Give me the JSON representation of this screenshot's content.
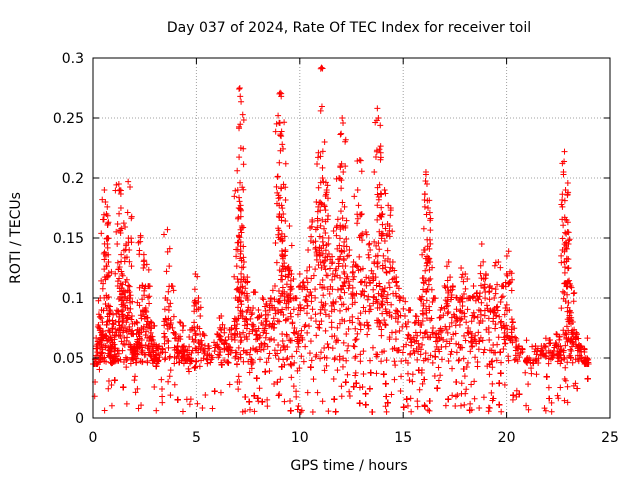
{
  "chart_data": {
    "type": "scatter",
    "title": "Day 037 of 2024, Rate Of TEC Index for receiver toil",
    "xlabel": "GPS time / hours",
    "ylabel": "ROTI / TECUs",
    "xlim": [
      0,
      25
    ],
    "ylim": [
      0,
      0.3
    ],
    "xticks": [
      0,
      5,
      10,
      15,
      20,
      25
    ],
    "yticks": [
      0,
      0.05,
      0.1,
      0.15,
      0.2,
      0.25,
      0.3
    ],
    "xtick_labels": [
      "0",
      "5",
      "10",
      "15",
      "20",
      "25"
    ],
    "ytick_labels": [
      "0",
      "0.05",
      "0.1",
      "0.15",
      "0.2",
      "0.25",
      "0.3"
    ],
    "grid": true,
    "marker": "+",
    "series": [
      {
        "name": "ROTI",
        "color": "#ff0000",
        "time_range": [
          0,
          24
        ],
        "dense_band": [
          0.005,
          0.045
        ],
        "points": [
          [
            0.1,
            0.03
          ],
          [
            0.2,
            0.06
          ],
          [
            0.3,
            0.075
          ],
          [
            0.35,
            0.1
          ],
          [
            0.45,
            0.07
          ],
          [
            0.55,
            0.19
          ],
          [
            0.6,
            0.18
          ],
          [
            0.65,
            0.17
          ],
          [
            0.7,
            0.15
          ],
          [
            0.75,
            0.13
          ],
          [
            0.8,
            0.09
          ],
          [
            0.9,
            0.065
          ],
          [
            1.0,
            0.05
          ],
          [
            1.1,
            0.08
          ],
          [
            1.2,
            0.11
          ],
          [
            1.25,
            0.195
          ],
          [
            1.3,
            0.19
          ],
          [
            1.35,
            0.175
          ],
          [
            1.4,
            0.12
          ],
          [
            1.5,
            0.1
          ],
          [
            1.6,
            0.145
          ],
          [
            1.7,
            0.197
          ],
          [
            1.75,
            0.14
          ],
          [
            1.8,
            0.1
          ],
          [
            1.9,
            0.07
          ],
          [
            2.0,
            0.06
          ],
          [
            2.1,
            0.08
          ],
          [
            2.2,
            0.07
          ],
          [
            2.3,
            0.152
          ],
          [
            2.4,
            0.11
          ],
          [
            2.5,
            0.09
          ],
          [
            2.6,
            0.128
          ],
          [
            2.7,
            0.11
          ],
          [
            2.8,
            0.08
          ],
          [
            2.9,
            0.065
          ],
          [
            3.0,
            0.05
          ],
          [
            3.2,
            0.06
          ],
          [
            3.5,
            0.1
          ],
          [
            3.6,
            0.157
          ],
          [
            3.8,
            0.11
          ],
          [
            4.0,
            0.07
          ],
          [
            4.2,
            0.08
          ],
          [
            4.4,
            0.06
          ],
          [
            4.6,
            0.05
          ],
          [
            4.8,
            0.075
          ],
          [
            4.95,
            0.12
          ],
          [
            5.1,
            0.1
          ],
          [
            5.3,
            0.07
          ],
          [
            5.6,
            0.06
          ],
          [
            6.0,
            0.07
          ],
          [
            6.2,
            0.085
          ],
          [
            6.4,
            0.065
          ],
          [
            6.7,
            0.075
          ],
          [
            6.9,
            0.1
          ],
          [
            7.0,
            0.19
          ],
          [
            7.05,
            0.175
          ],
          [
            7.1,
            0.275
          ],
          [
            7.12,
            0.268
          ],
          [
            7.15,
            0.225
          ],
          [
            7.2,
            0.16
          ],
          [
            7.3,
            0.13
          ],
          [
            7.4,
            0.1
          ],
          [
            7.6,
            0.09
          ],
          [
            7.8,
            0.105
          ],
          [
            8.0,
            0.09
          ],
          [
            8.2,
            0.1
          ],
          [
            8.4,
            0.095
          ],
          [
            8.6,
            0.1
          ],
          [
            8.8,
            0.11
          ],
          [
            8.95,
            0.252
          ],
          [
            9.0,
            0.246
          ],
          [
            9.05,
            0.271
          ],
          [
            9.1,
            0.268
          ],
          [
            9.15,
            0.228
          ],
          [
            9.2,
            0.17
          ],
          [
            9.3,
            0.14
          ],
          [
            9.4,
            0.125
          ],
          [
            9.5,
            0.16
          ],
          [
            9.6,
            0.12
          ],
          [
            9.8,
            0.1
          ],
          [
            10.0,
            0.12
          ],
          [
            10.2,
            0.11
          ],
          [
            10.4,
            0.14
          ],
          [
            10.6,
            0.165
          ],
          [
            10.8,
            0.18
          ],
          [
            10.9,
            0.221
          ],
          [
            11.0,
            0.218
          ],
          [
            11.05,
            0.292
          ],
          [
            11.1,
            0.2
          ],
          [
            11.2,
            0.23
          ],
          [
            11.3,
            0.19
          ],
          [
            11.4,
            0.15
          ],
          [
            11.6,
            0.12
          ],
          [
            11.8,
            0.16
          ],
          [
            11.9,
            0.2
          ],
          [
            12.0,
            0.237
          ],
          [
            12.05,
            0.25
          ],
          [
            12.1,
            0.205
          ],
          [
            12.2,
            0.16
          ],
          [
            12.4,
            0.14
          ],
          [
            12.6,
            0.13
          ],
          [
            12.8,
            0.19
          ],
          [
            12.9,
            0.215
          ],
          [
            13.0,
            0.17
          ],
          [
            13.2,
            0.155
          ],
          [
            13.4,
            0.14
          ],
          [
            13.6,
            0.13
          ],
          [
            13.75,
            0.258
          ],
          [
            13.8,
            0.25
          ],
          [
            13.85,
            0.224
          ],
          [
            13.9,
            0.168
          ],
          [
            14.0,
            0.17
          ],
          [
            14.1,
            0.19
          ],
          [
            14.2,
            0.152
          ],
          [
            14.4,
            0.175
          ],
          [
            14.5,
            0.13
          ],
          [
            14.7,
            0.11
          ],
          [
            15.0,
            0.1
          ],
          [
            15.3,
            0.09
          ],
          [
            15.6,
            0.085
          ],
          [
            15.8,
            0.1
          ],
          [
            16.0,
            0.14
          ],
          [
            16.1,
            0.205
          ],
          [
            16.15,
            0.195
          ],
          [
            16.2,
            0.175
          ],
          [
            16.3,
            0.13
          ],
          [
            16.5,
            0.1
          ],
          [
            16.8,
            0.09
          ],
          [
            17.0,
            0.11
          ],
          [
            17.2,
            0.13
          ],
          [
            17.4,
            0.11
          ],
          [
            17.6,
            0.1
          ],
          [
            17.8,
            0.125
          ],
          [
            18.0,
            0.12
          ],
          [
            18.2,
            0.1
          ],
          [
            18.4,
            0.11
          ],
          [
            18.6,
            0.1
          ],
          [
            18.8,
            0.145
          ],
          [
            19.0,
            0.12
          ],
          [
            19.2,
            0.11
          ],
          [
            19.4,
            0.1
          ],
          [
            19.6,
            0.13
          ],
          [
            19.8,
            0.11
          ],
          [
            20.0,
            0.12
          ],
          [
            20.1,
            0.139
          ],
          [
            20.3,
            0.08
          ],
          [
            20.6,
            0.06
          ],
          [
            21.0,
            0.05
          ],
          [
            21.4,
            0.06
          ],
          [
            21.8,
            0.06
          ],
          [
            22.1,
            0.065
          ],
          [
            22.4,
            0.07
          ],
          [
            22.6,
            0.06
          ],
          [
            22.75,
            0.205
          ],
          [
            22.8,
            0.222
          ],
          [
            22.85,
            0.19
          ],
          [
            22.9,
            0.165
          ],
          [
            22.95,
            0.155
          ],
          [
            23.0,
            0.125
          ],
          [
            23.1,
            0.11
          ],
          [
            23.2,
            0.08
          ],
          [
            23.4,
            0.07
          ],
          [
            23.6,
            0.06
          ],
          [
            23.8,
            0.05
          ],
          [
            23.95,
            0.045
          ]
        ]
      }
    ]
  }
}
